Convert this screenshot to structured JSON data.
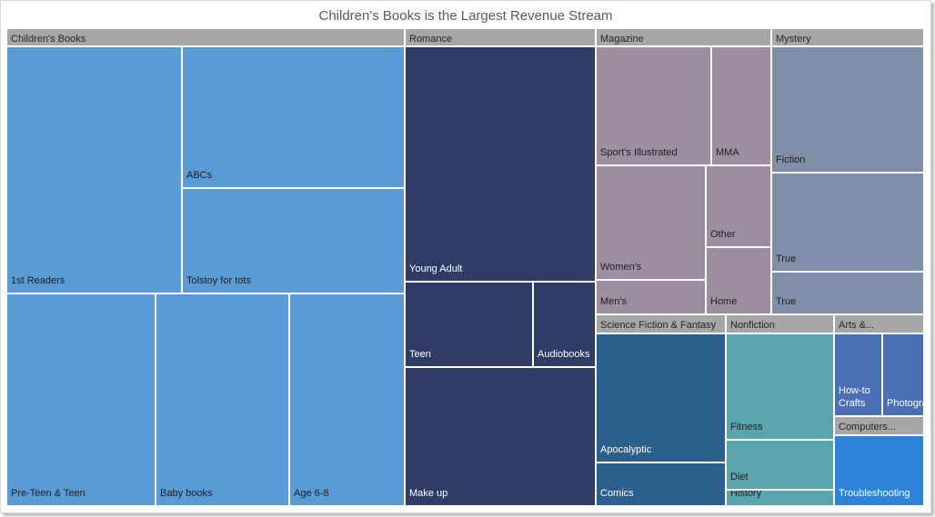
{
  "chart_data": {
    "type": "treemap",
    "title": "Children's Books is the Largest Revenue Stream",
    "groups": [
      {
        "name": "Children's Books",
        "color": "#5b9bd5",
        "label_color": "#1f1f1f",
        "items": [
          {
            "name": "1st Readers"
          },
          {
            "name": "ABCs"
          },
          {
            "name": "Tolstoy for tots"
          },
          {
            "name": "Pre-Teen & Teen"
          },
          {
            "name": "Baby books"
          },
          {
            "name": "Age 6-8"
          }
        ]
      },
      {
        "name": "Romance",
        "color": "#2e3c66",
        "label_color": "#ffffff",
        "items": [
          {
            "name": "Young Adult"
          },
          {
            "name": "Teen"
          },
          {
            "name": "Audiobooks"
          },
          {
            "name": "Make up"
          }
        ]
      },
      {
        "name": "Magazine",
        "color": "#9e8ea1",
        "label_color": "#1f1f1f",
        "items": [
          {
            "name": "Sport's Illustrated"
          },
          {
            "name": "MMA"
          },
          {
            "name": "Women's"
          },
          {
            "name": "Other"
          },
          {
            "name": "Men's"
          },
          {
            "name": "Home"
          }
        ]
      },
      {
        "name": "Mystery",
        "color": "#7f8ea9",
        "label_color": "#1f1f1f",
        "items": [
          {
            "name": "Fiction"
          },
          {
            "name": "True"
          },
          {
            "name": "True"
          }
        ]
      },
      {
        "name": "Science Fiction & Fantasy",
        "color": "#2b5f8c",
        "label_color": "#ffffff",
        "items": [
          {
            "name": "Apocalyptic"
          },
          {
            "name": "Comics"
          }
        ]
      },
      {
        "name": "Nonfiction",
        "color": "#5ba3ad",
        "label_color": "#1f1f1f",
        "items": [
          {
            "name": "Fitness"
          },
          {
            "name": "Diet"
          },
          {
            "name": "History"
          }
        ]
      },
      {
        "name": "Arts &...",
        "color": "#4a6fb5",
        "label_color": "#ffffff",
        "items": [
          {
            "name": "How-to Crafts"
          },
          {
            "name": "Photography"
          }
        ]
      },
      {
        "name": "Computers...",
        "color": "#2e83d6",
        "label_color": "#ffffff",
        "items": [
          {
            "name": "Troubleshooting"
          }
        ]
      }
    ],
    "header_color": "#a6a6a6"
  }
}
